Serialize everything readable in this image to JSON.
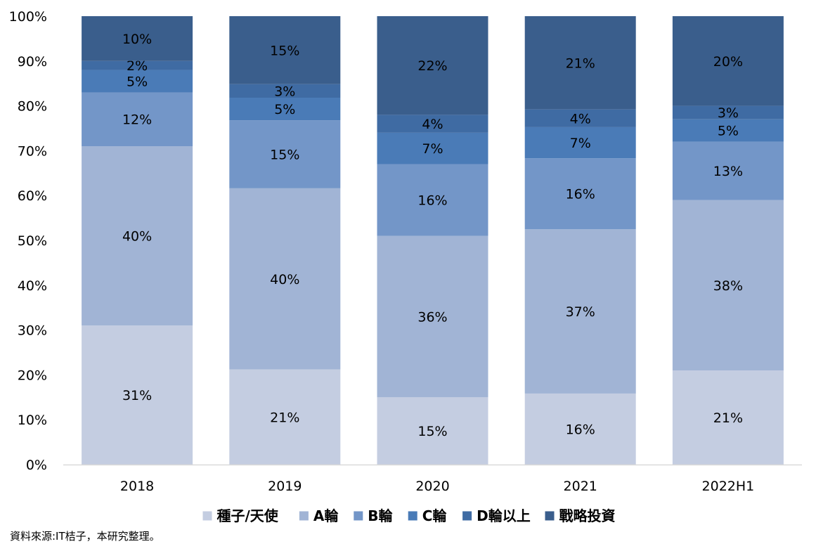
{
  "chart_data": {
    "type": "bar",
    "stacked": true,
    "percent": true,
    "categories": [
      "2018",
      "2019",
      "2020",
      "2021",
      "2022H1"
    ],
    "series": [
      {
        "name": "種子/天使",
        "color": "#c4cde1",
        "values": [
          31,
          21,
          15,
          16,
          21
        ]
      },
      {
        "name": "A輪",
        "color": "#a1b4d5",
        "values": [
          40,
          40,
          36,
          37,
          38
        ]
      },
      {
        "name": "B輪",
        "color": "#7396c8",
        "values": [
          12,
          15,
          16,
          16,
          13
        ]
      },
      {
        "name": "C輪",
        "color": "#4a7bb7",
        "values": [
          5,
          5,
          7,
          7,
          5
        ]
      },
      {
        "name": "D輪以上",
        "color": "#3f6ba3",
        "values": [
          2,
          3,
          4,
          4,
          3
        ]
      },
      {
        "name": "戰略投資",
        "color": "#3a5e8c",
        "values": [
          10,
          15,
          22,
          21,
          20
        ]
      }
    ],
    "ylim": [
      0,
      100
    ],
    "yticks": [
      "0%",
      "10%",
      "20%",
      "30%",
      "40%",
      "50%",
      "60%",
      "70%",
      "80%",
      "90%",
      "100%"
    ],
    "legend_position": "bottom",
    "grid": false,
    "title": "",
    "xlabel": "",
    "ylabel": ""
  },
  "source_note": "資料來源:IT桔子，本研究整理。"
}
